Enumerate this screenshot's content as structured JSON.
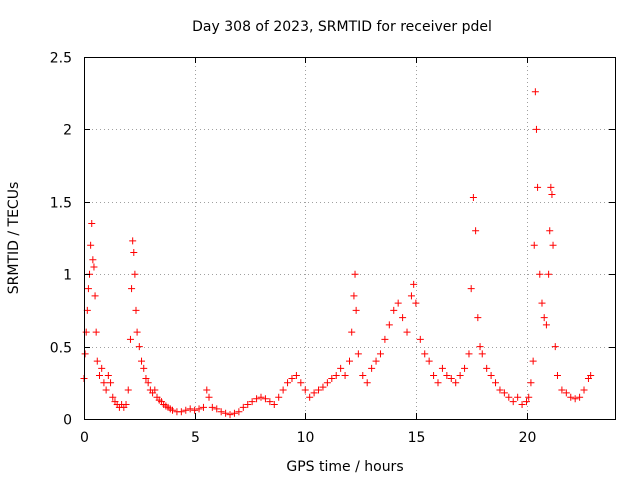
{
  "chart_data": {
    "type": "scatter",
    "title": "Day 308 of 2023, SRMTID for receiver pdel",
    "xlabel": "GPS time / hours",
    "ylabel": "SRMTID / TECUs",
    "xlim": [
      0,
      24
    ],
    "ylim": [
      0,
      2.5
    ],
    "x_ticks": [
      0,
      5,
      10,
      15,
      20
    ],
    "x_tick_labels": [
      "0",
      "5",
      "10",
      "15",
      "20"
    ],
    "y_ticks": [
      0,
      0.5,
      1,
      1.5,
      2,
      2.5
    ],
    "y_tick_labels": [
      "0",
      "0.5",
      "1",
      "1.5",
      "2",
      "2.5"
    ],
    "grid": true,
    "marker": "+",
    "series": [
      {
        "name": "SRMTID",
        "color": "#ff0000",
        "points": [
          [
            0.0,
            0.28
          ],
          [
            0.05,
            0.45
          ],
          [
            0.1,
            0.6
          ],
          [
            0.15,
            0.75
          ],
          [
            0.2,
            0.9
          ],
          [
            0.25,
            1.0
          ],
          [
            0.3,
            1.2
          ],
          [
            0.35,
            1.35
          ],
          [
            0.4,
            1.1
          ],
          [
            0.45,
            1.05
          ],
          [
            0.5,
            0.85
          ],
          [
            0.55,
            0.6
          ],
          [
            0.6,
            0.4
          ],
          [
            0.7,
            0.3
          ],
          [
            0.8,
            0.35
          ],
          [
            0.9,
            0.25
          ],
          [
            1.0,
            0.2
          ],
          [
            1.1,
            0.3
          ],
          [
            1.2,
            0.25
          ],
          [
            1.3,
            0.15
          ],
          [
            1.4,
            0.12
          ],
          [
            1.5,
            0.1
          ],
          [
            1.6,
            0.08
          ],
          [
            1.7,
            0.1
          ],
          [
            1.8,
            0.08
          ],
          [
            1.9,
            0.1
          ],
          [
            2.0,
            0.2
          ],
          [
            2.1,
            0.55
          ],
          [
            2.15,
            0.9
          ],
          [
            2.2,
            1.23
          ],
          [
            2.25,
            1.15
          ],
          [
            2.3,
            1.0
          ],
          [
            2.35,
            0.75
          ],
          [
            2.4,
            0.6
          ],
          [
            2.5,
            0.5
          ],
          [
            2.6,
            0.4
          ],
          [
            2.7,
            0.35
          ],
          [
            2.8,
            0.28
          ],
          [
            2.9,
            0.25
          ],
          [
            3.0,
            0.2
          ],
          [
            3.1,
            0.18
          ],
          [
            3.2,
            0.2
          ],
          [
            3.3,
            0.15
          ],
          [
            3.4,
            0.13
          ],
          [
            3.5,
            0.12
          ],
          [
            3.6,
            0.1
          ],
          [
            3.7,
            0.09
          ],
          [
            3.8,
            0.08
          ],
          [
            3.9,
            0.07
          ],
          [
            4.0,
            0.06
          ],
          [
            4.2,
            0.05
          ],
          [
            4.4,
            0.05
          ],
          [
            4.6,
            0.06
          ],
          [
            4.8,
            0.07
          ],
          [
            5.0,
            0.06
          ],
          [
            5.2,
            0.07
          ],
          [
            5.4,
            0.08
          ],
          [
            5.55,
            0.2
          ],
          [
            5.65,
            0.15
          ],
          [
            5.8,
            0.08
          ],
          [
            6.0,
            0.07
          ],
          [
            6.2,
            0.05
          ],
          [
            6.4,
            0.04
          ],
          [
            6.6,
            0.03
          ],
          [
            6.8,
            0.04
          ],
          [
            7.0,
            0.05
          ],
          [
            7.2,
            0.08
          ],
          [
            7.4,
            0.1
          ],
          [
            7.6,
            0.12
          ],
          [
            7.8,
            0.14
          ],
          [
            8.0,
            0.15
          ],
          [
            8.2,
            0.14
          ],
          [
            8.4,
            0.12
          ],
          [
            8.6,
            0.1
          ],
          [
            8.8,
            0.15
          ],
          [
            9.0,
            0.2
          ],
          [
            9.2,
            0.25
          ],
          [
            9.4,
            0.28
          ],
          [
            9.6,
            0.3
          ],
          [
            9.8,
            0.25
          ],
          [
            10.0,
            0.2
          ],
          [
            10.2,
            0.15
          ],
          [
            10.4,
            0.18
          ],
          [
            10.6,
            0.2
          ],
          [
            10.8,
            0.22
          ],
          [
            11.0,
            0.25
          ],
          [
            11.2,
            0.28
          ],
          [
            11.4,
            0.3
          ],
          [
            11.6,
            0.35
          ],
          [
            11.8,
            0.3
          ],
          [
            12.0,
            0.4
          ],
          [
            12.1,
            0.6
          ],
          [
            12.2,
            0.85
          ],
          [
            12.25,
            1.0
          ],
          [
            12.3,
            0.75
          ],
          [
            12.4,
            0.45
          ],
          [
            12.6,
            0.3
          ],
          [
            12.8,
            0.25
          ],
          [
            13.0,
            0.35
          ],
          [
            13.2,
            0.4
          ],
          [
            13.4,
            0.45
          ],
          [
            13.6,
            0.55
          ],
          [
            13.8,
            0.65
          ],
          [
            14.0,
            0.75
          ],
          [
            14.2,
            0.8
          ],
          [
            14.4,
            0.7
          ],
          [
            14.6,
            0.6
          ],
          [
            14.8,
            0.85
          ],
          [
            14.9,
            0.93
          ],
          [
            15.0,
            0.8
          ],
          [
            15.2,
            0.55
          ],
          [
            15.4,
            0.45
          ],
          [
            15.6,
            0.4
          ],
          [
            15.8,
            0.3
          ],
          [
            16.0,
            0.25
          ],
          [
            16.2,
            0.35
          ],
          [
            16.4,
            0.3
          ],
          [
            16.6,
            0.28
          ],
          [
            16.8,
            0.25
          ],
          [
            17.0,
            0.3
          ],
          [
            17.2,
            0.35
          ],
          [
            17.4,
            0.45
          ],
          [
            17.5,
            0.9
          ],
          [
            17.6,
            1.53
          ],
          [
            17.7,
            1.3
          ],
          [
            17.8,
            0.7
          ],
          [
            17.9,
            0.5
          ],
          [
            18.0,
            0.45
          ],
          [
            18.2,
            0.35
          ],
          [
            18.4,
            0.3
          ],
          [
            18.6,
            0.25
          ],
          [
            18.8,
            0.2
          ],
          [
            19.0,
            0.18
          ],
          [
            19.2,
            0.15
          ],
          [
            19.4,
            0.12
          ],
          [
            19.6,
            0.15
          ],
          [
            19.8,
            0.1
          ],
          [
            20.0,
            0.12
          ],
          [
            20.1,
            0.15
          ],
          [
            20.2,
            0.25
          ],
          [
            20.3,
            0.4
          ],
          [
            20.35,
            1.2
          ],
          [
            20.4,
            2.26
          ],
          [
            20.45,
            2.0
          ],
          [
            20.5,
            1.6
          ],
          [
            20.6,
            1.0
          ],
          [
            20.7,
            0.8
          ],
          [
            20.8,
            0.7
          ],
          [
            20.9,
            0.65
          ],
          [
            21.0,
            1.0
          ],
          [
            21.05,
            1.3
          ],
          [
            21.1,
            1.6
          ],
          [
            21.15,
            1.55
          ],
          [
            21.2,
            1.2
          ],
          [
            21.3,
            0.5
          ],
          [
            21.4,
            0.3
          ],
          [
            21.6,
            0.2
          ],
          [
            21.8,
            0.18
          ],
          [
            22.0,
            0.15
          ],
          [
            22.2,
            0.14
          ],
          [
            22.4,
            0.15
          ],
          [
            22.6,
            0.2
          ],
          [
            22.8,
            0.28
          ],
          [
            22.9,
            0.3
          ]
        ]
      }
    ]
  }
}
